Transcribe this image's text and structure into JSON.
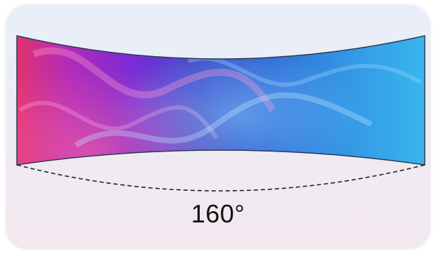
{
  "viewing_angle_label": "160°",
  "colors": {
    "background_top": "#e8eff9",
    "background_bottom": "#f3e8ee",
    "screen_left": "#e0336e",
    "screen_mid_left": "#7b2bd6",
    "screen_mid": "#3d49c9",
    "screen_right": "#39b6ee",
    "frame_edge": "#2f3a55",
    "dashed_arc": "#222222"
  },
  "icons": {
    "screen": "curved-monitor-panel",
    "arc": "dashed-viewing-angle-arc"
  }
}
